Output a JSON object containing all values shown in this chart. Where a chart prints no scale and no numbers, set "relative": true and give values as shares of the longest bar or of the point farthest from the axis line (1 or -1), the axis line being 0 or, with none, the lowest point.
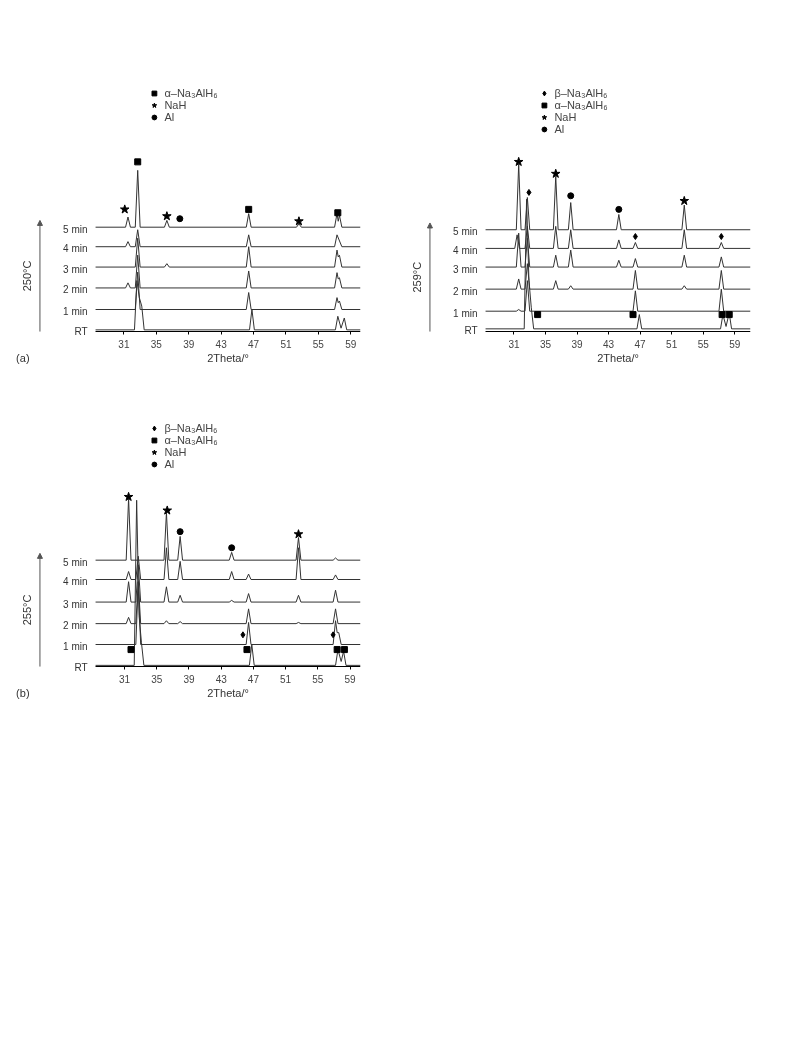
{
  "chart_data": [
    {
      "type": "line",
      "relative": true,
      "xlabel": "2Theta/°",
      "ylabel": "250°C",
      "annotations": [
        "(a)"
      ],
      "xlim": [
        27.5,
        60.2
      ],
      "xticks": [
        31,
        35,
        39,
        43,
        47,
        51,
        55,
        59
      ],
      "grid": false,
      "legend": "top",
      "line_style": "solid",
      "series": [
        {
          "name": "5 min",
          "color": "#333333",
          "x": [
            27.5,
            31.2,
            31.5,
            31.8,
            32.4,
            32.7,
            33.0,
            36.0,
            36.3,
            36.6,
            46.1,
            46.4,
            46.7,
            52.3,
            52.6,
            52.9,
            57.0,
            57.3,
            57.45,
            57.6,
            57.9,
            60.2
          ],
          "values": [
            0.615,
            0.615,
            0.675,
            0.615,
            0.615,
            0.95,
            0.615,
            0.615,
            0.655,
            0.615,
            0.615,
            0.695,
            0.615,
            0.615,
            0.635,
            0.615,
            0.615,
            0.695,
            0.65,
            0.685,
            0.615,
            0.615
          ]
        },
        {
          "name": "4 min",
          "color": "#333333",
          "x": [
            27.5,
            31.2,
            31.5,
            31.8,
            32.4,
            32.7,
            33.0,
            46.1,
            46.4,
            46.7,
            57.0,
            57.3,
            57.9,
            60.2
          ],
          "values": [
            0.5,
            0.5,
            0.53,
            0.5,
            0.5,
            0.6,
            0.5,
            0.5,
            0.57,
            0.5,
            0.5,
            0.57,
            0.5,
            0.5
          ]
        },
        {
          "name": "3 min",
          "color": "#333333",
          "x": [
            27.5,
            32.4,
            32.7,
            33.0,
            36.0,
            36.3,
            36.6,
            46.1,
            46.4,
            46.7,
            57.0,
            57.3,
            57.45,
            57.6,
            57.9,
            60.2
          ],
          "values": [
            0.38,
            0.38,
            0.55,
            0.38,
            0.38,
            0.4,
            0.38,
            0.38,
            0.5,
            0.38,
            0.38,
            0.48,
            0.44,
            0.45,
            0.38,
            0.38
          ]
        },
        {
          "name": "2 min",
          "color": "#333333",
          "x": [
            27.5,
            31.2,
            31.5,
            31.8,
            32.4,
            32.7,
            33.0,
            46.1,
            46.4,
            46.7,
            57.0,
            57.3,
            57.45,
            57.6,
            57.9,
            60.2
          ],
          "values": [
            0.257,
            0.257,
            0.287,
            0.257,
            0.257,
            0.45,
            0.257,
            0.257,
            0.357,
            0.257,
            0.257,
            0.347,
            0.31,
            0.317,
            0.257,
            0.257
          ]
        },
        {
          "name": "1 min",
          "color": "#333333",
          "x": [
            27.5,
            32.4,
            32.7,
            33.0,
            46.1,
            46.4,
            46.7,
            57.0,
            57.3,
            57.45,
            57.6,
            57.9,
            60.2
          ],
          "values": [
            0.13,
            0.13,
            0.35,
            0.13,
            0.13,
            0.23,
            0.13,
            0.13,
            0.2,
            0.17,
            0.18,
            0.13,
            0.13
          ]
        },
        {
          "name": "RT",
          "color": "#333333",
          "x": [
            27.5,
            32.3,
            32.6,
            32.9,
            33.2,
            33.5,
            46.5,
            46.8,
            47.1,
            57.1,
            57.4,
            57.8,
            58.2,
            58.5,
            60.2
          ],
          "values": [
            0.01,
            0.01,
            0.3,
            0.2,
            0.15,
            0.01,
            0.01,
            0.13,
            0.01,
            0.01,
            0.09,
            0.02,
            0.08,
            0.01,
            0.01
          ]
        },
        {
          "type": "scatter",
          "marker": "square",
          "name": "α–Na₃AlH₆",
          "color": "#000000",
          "x": [
            32.7,
            46.4,
            57.4
          ],
          "values": [
            1.0,
            0.72,
            0.7
          ]
        },
        {
          "type": "scatter",
          "marker": "star",
          "name": "NaH",
          "color": "#000000",
          "x": [
            31.1,
            36.3,
            52.6
          ],
          "values": [
            0.72,
            0.68,
            0.65
          ]
        },
        {
          "type": "scatter",
          "marker": "circle",
          "name": "Al",
          "color": "#000000",
          "x": [
            37.9
          ],
          "values": [
            0.665
          ]
        }
      ]
    },
    {
      "type": "line",
      "relative": true,
      "xlabel": "2Theta/°",
      "ylabel": "259°C",
      "xlim": [
        27.4,
        61.0
      ],
      "xticks": [
        31,
        35,
        39,
        43,
        47,
        51,
        55,
        59
      ],
      "grid": false,
      "legend": "top",
      "line_style": "solid",
      "series": [
        {
          "name": "5 min",
          "color": "#333333",
          "x": [
            27.4,
            31.3,
            31.6,
            31.9,
            32.4,
            32.7,
            33.0,
            36.0,
            36.3,
            36.6,
            37.9,
            38.2,
            38.5,
            44.0,
            44.3,
            44.6,
            52.3,
            52.6,
            52.9,
            61.0
          ],
          "values": [
            0.6,
            0.6,
            0.987,
            0.6,
            0.6,
            0.79,
            0.6,
            0.6,
            0.915,
            0.6,
            0.6,
            0.76,
            0.6,
            0.6,
            0.69,
            0.6,
            0.6,
            0.745,
            0.6,
            0.6
          ]
        },
        {
          "name": "4 min",
          "color": "#333333",
          "x": [
            27.4,
            31.1,
            31.4,
            31.7,
            32.4,
            32.7,
            33.0,
            36.0,
            36.3,
            36.6,
            37.9,
            38.2,
            38.5,
            44.0,
            44.3,
            44.6,
            46.1,
            46.4,
            46.7,
            52.3,
            52.6,
            52.9,
            57.0,
            57.3,
            57.6,
            61.0
          ],
          "values": [
            0.49,
            0.49,
            0.57,
            0.49,
            0.49,
            0.62,
            0.49,
            0.49,
            0.62,
            0.49,
            0.49,
            0.6,
            0.49,
            0.49,
            0.54,
            0.49,
            0.49,
            0.525,
            0.49,
            0.49,
            0.6,
            0.49,
            0.49,
            0.525,
            0.49,
            0.49
          ]
        },
        {
          "name": "3 min",
          "color": "#333333",
          "x": [
            27.4,
            31.3,
            31.6,
            31.9,
            32.4,
            32.7,
            33.0,
            36.0,
            36.3,
            36.6,
            37.9,
            38.2,
            38.5,
            44.0,
            44.3,
            44.6,
            46.1,
            46.4,
            46.7,
            52.3,
            52.6,
            52.9,
            57.0,
            57.3,
            57.6,
            61.0
          ],
          "values": [
            0.38,
            0.38,
            0.58,
            0.38,
            0.38,
            0.55,
            0.38,
            0.38,
            0.45,
            0.38,
            0.38,
            0.48,
            0.38,
            0.38,
            0.42,
            0.38,
            0.38,
            0.43,
            0.38,
            0.38,
            0.45,
            0.38,
            0.38,
            0.44,
            0.38,
            0.38
          ]
        },
        {
          "name": "2 min",
          "color": "#333333",
          "x": [
            27.4,
            31.3,
            31.6,
            31.9,
            32.4,
            32.7,
            33.0,
            36.0,
            36.3,
            36.6,
            37.9,
            38.2,
            38.5,
            46.1,
            46.4,
            46.7,
            52.3,
            52.6,
            52.9,
            57.0,
            57.3,
            57.6,
            61.0
          ],
          "values": [
            0.25,
            0.25,
            0.31,
            0.25,
            0.25,
            0.4,
            0.25,
            0.25,
            0.3,
            0.25,
            0.25,
            0.27,
            0.25,
            0.25,
            0.36,
            0.25,
            0.25,
            0.27,
            0.25,
            0.25,
            0.36,
            0.25,
            0.25
          ]
        },
        {
          "name": "1 min",
          "color": "#333333",
          "x": [
            27.4,
            31.3,
            31.6,
            31.9,
            32.4,
            32.7,
            33.0,
            46.1,
            46.4,
            46.7,
            57.0,
            57.3,
            57.6,
            61.0
          ],
          "values": [
            0.12,
            0.12,
            0.13,
            0.12,
            0.12,
            0.3,
            0.12,
            0.12,
            0.24,
            0.12,
            0.12,
            0.25,
            0.12,
            0.12
          ]
        },
        {
          "name": "RT",
          "color": "#333333",
          "x": [
            27.4,
            32.3,
            32.6,
            32.9,
            33.2,
            33.5,
            46.6,
            46.9,
            47.2,
            57.2,
            57.5,
            57.9,
            58.3,
            58.6,
            61.0
          ],
          "values": [
            0.016,
            0.016,
            0.78,
            0.3,
            0.14,
            0.016,
            0.016,
            0.1,
            0.016,
            0.016,
            0.1,
            0.03,
            0.11,
            0.016,
            0.016
          ]
        },
        {
          "type": "scatter",
          "marker": "diamond",
          "name": "β–Na₃AlH₆",
          "color": "#000000",
          "x": [
            32.9,
            46.4,
            57.3
          ],
          "values": [
            0.82,
            0.56,
            0.56
          ]
        },
        {
          "type": "scatter",
          "marker": "square",
          "name": "α–Na₃AlH₆",
          "color": "#000000",
          "x": [
            34.0,
            46.1,
            57.4,
            58.3
          ],
          "values": [
            0.1,
            0.1,
            0.1,
            0.1
          ]
        },
        {
          "type": "scatter",
          "marker": "star",
          "name": "NaH",
          "color": "#000000",
          "x": [
            31.6,
            36.3,
            52.6
          ],
          "values": [
            1.0,
            0.93,
            0.77
          ]
        },
        {
          "type": "scatter",
          "marker": "circle",
          "name": "Al",
          "color": "#000000",
          "x": [
            38.2,
            44.3
          ],
          "values": [
            0.8,
            0.72
          ]
        }
      ]
    },
    {
      "type": "line",
      "relative": true,
      "xlabel": "2Theta/°",
      "ylabel": "255°C",
      "annotations": [
        "(b)"
      ],
      "xlim": [
        27.4,
        60.3
      ],
      "xticks": [
        31,
        35,
        39,
        43,
        47,
        51,
        55,
        59
      ],
      "grid": false,
      "legend": "top",
      "line_style": "solid",
      "series": [
        {
          "name": "5 min",
          "color": "#333333",
          "x": [
            27.4,
            31.2,
            31.5,
            31.8,
            35.9,
            36.2,
            36.5,
            37.6,
            37.9,
            38.2,
            44.0,
            44.3,
            44.6,
            52.3,
            52.6,
            52.9,
            56.9,
            57.2,
            57.5,
            60.3
          ],
          "values": [
            0.627,
            0.627,
            0.99,
            0.627,
            0.627,
            0.907,
            0.627,
            0.627,
            0.767,
            0.627,
            0.627,
            0.673,
            0.627,
            0.627,
            0.76,
            0.627,
            0.627,
            0.64,
            0.627,
            0.627
          ]
        },
        {
          "name": "4 min",
          "color": "#333333",
          "x": [
            27.4,
            31.2,
            31.5,
            31.8,
            32.4,
            32.7,
            33.0,
            35.9,
            36.2,
            36.5,
            37.6,
            37.9,
            38.2,
            44.0,
            44.3,
            44.6,
            46.1,
            46.4,
            46.7,
            52.3,
            52.6,
            52.9,
            56.9,
            57.2,
            57.5,
            60.3
          ],
          "values": [
            0.513,
            0.513,
            0.56,
            0.513,
            0.513,
            0.65,
            0.513,
            0.513,
            0.7,
            0.513,
            0.513,
            0.62,
            0.513,
            0.513,
            0.56,
            0.513,
            0.513,
            0.545,
            0.513,
            0.513,
            0.7,
            0.513,
            0.513,
            0.54,
            0.513,
            0.513
          ]
        },
        {
          "name": "3 min",
          "color": "#333333",
          "x": [
            27.4,
            31.2,
            31.5,
            31.8,
            32.4,
            32.7,
            33.0,
            35.9,
            36.2,
            36.5,
            37.6,
            37.9,
            38.2,
            44.0,
            44.3,
            44.6,
            46.1,
            46.4,
            46.7,
            52.3,
            52.6,
            52.9,
            56.9,
            57.2,
            57.5,
            60.3
          ],
          "values": [
            0.38,
            0.38,
            0.5,
            0.38,
            0.38,
            0.6,
            0.38,
            0.38,
            0.47,
            0.38,
            0.38,
            0.42,
            0.38,
            0.38,
            0.39,
            0.38,
            0.38,
            0.43,
            0.38,
            0.38,
            0.42,
            0.38,
            0.38,
            0.45,
            0.38,
            0.38
          ]
        },
        {
          "name": "2 min",
          "color": "#333333",
          "x": [
            27.4,
            31.2,
            31.5,
            31.8,
            32.4,
            32.7,
            33.0,
            35.9,
            36.2,
            36.5,
            37.6,
            37.9,
            38.2,
            46.1,
            46.4,
            46.7,
            52.3,
            52.6,
            52.9,
            56.9,
            57.2,
            57.5,
            60.3
          ],
          "values": [
            0.253,
            0.253,
            0.29,
            0.253,
            0.253,
            0.5,
            0.253,
            0.253,
            0.27,
            0.253,
            0.253,
            0.265,
            0.253,
            0.253,
            0.34,
            0.253,
            0.253,
            0.26,
            0.253,
            0.253,
            0.34,
            0.253,
            0.253
          ]
        },
        {
          "name": "1 min",
          "color": "#333333",
          "x": [
            27.4,
            32.4,
            32.7,
            33.0,
            46.1,
            46.4,
            46.7,
            56.9,
            57.2,
            57.4,
            57.6,
            57.9,
            60.3
          ],
          "values": [
            0.13,
            0.13,
            0.5,
            0.13,
            0.13,
            0.26,
            0.13,
            0.13,
            0.27,
            0.2,
            0.2,
            0.13,
            0.13
          ]
        },
        {
          "name": "RT",
          "color": "#333333",
          "x": [
            27.4,
            32.2,
            32.5,
            32.8,
            33.1,
            33.4,
            46.5,
            46.8,
            47.1,
            57.2,
            57.5,
            57.9,
            58.2,
            58.5,
            60.3
          ],
          "values": [
            0.007,
            0.007,
            0.98,
            0.3,
            0.14,
            0.007,
            0.007,
            0.13,
            0.007,
            0.007,
            0.1,
            0.03,
            0.09,
            0.007,
            0.007
          ]
        },
        {
          "type": "scatter",
          "marker": "diamond",
          "name": "β–Na₃AlH₆",
          "color": "#000000",
          "x": [
            45.7,
            56.9
          ],
          "values": [
            0.187,
            0.187
          ]
        },
        {
          "type": "scatter",
          "marker": "square",
          "name": "α–Na₃AlH₆",
          "color": "#000000",
          "x": [
            31.8,
            46.2,
            57.4,
            58.3
          ],
          "values": [
            0.1,
            0.1,
            0.1,
            0.1
          ]
        },
        {
          "type": "scatter",
          "marker": "star",
          "name": "NaH",
          "color": "#000000",
          "x": [
            31.5,
            36.3,
            52.6
          ],
          "values": [
            1.0,
            0.92,
            0.78
          ]
        },
        {
          "type": "scatter",
          "marker": "circle",
          "name": "Al",
          "color": "#000000",
          "x": [
            37.9,
            44.3
          ],
          "values": [
            0.795,
            0.7
          ]
        }
      ]
    }
  ]
}
